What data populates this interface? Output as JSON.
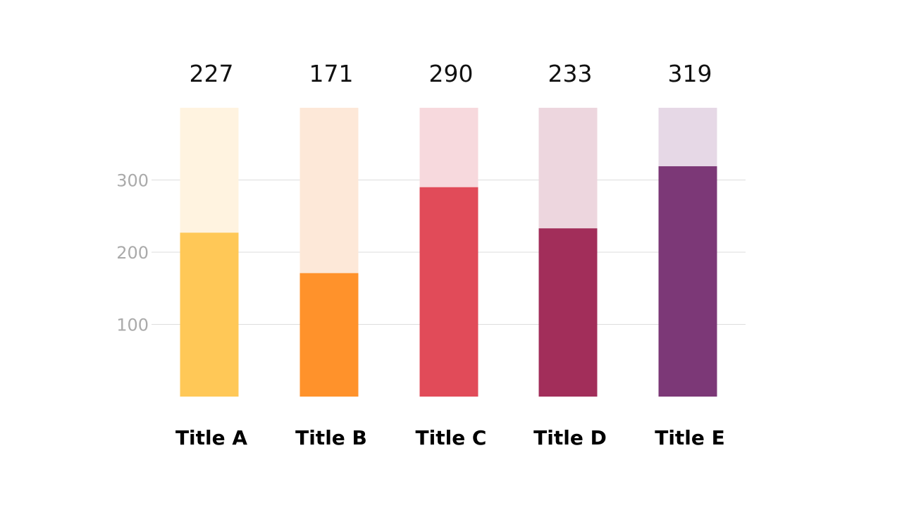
{
  "chart_data": {
    "type": "bar",
    "categories": [
      "Title A",
      "Title B",
      "Title C",
      "Title D",
      "Title E"
    ],
    "values": [
      227,
      171,
      290,
      233,
      319
    ],
    "background_max": 400,
    "ylim": [
      0,
      400
    ],
    "yticks": [
      100,
      200,
      300
    ],
    "ytick_labels": [
      "100",
      "200",
      "300"
    ],
    "grid": true,
    "title": "",
    "xlabel": "",
    "ylabel": "",
    "colors": [
      "#FFC857",
      "#FF922B",
      "#E14B59",
      "#A22E5A",
      "#7C3877"
    ],
    "track_colors": [
      "#FFF3E0",
      "#FDE8D8",
      "#F7D9DD",
      "#EDD6DE",
      "#E6D8E6"
    ],
    "grid_color": "#DDDDDD",
    "tick_label_color": "#AAAAAA",
    "value_label_color": "#111111",
    "category_label_color": "#000000"
  }
}
